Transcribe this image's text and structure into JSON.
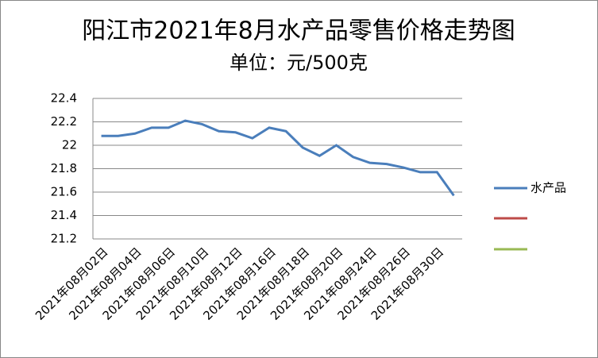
{
  "chart_data": {
    "type": "line",
    "title": "阳江市2021年8月水产品零售价格走势图",
    "subtitle": "单位：元/500克",
    "categories": [
      "2021年08月02日",
      null,
      "2021年08月04日",
      null,
      "2021年08月06日",
      null,
      "2021年08月10日",
      null,
      "2021年08月12日",
      null,
      "2021年08月16日",
      null,
      "2021年08月18日",
      null,
      "2021年08月20日",
      null,
      "2021年08月24日",
      null,
      "2021年08月26日",
      null,
      "2021年08月30日",
      null
    ],
    "series": [
      {
        "name": "水产品",
        "color": "#4a7ebb",
        "values": [
          22.08,
          22.08,
          22.1,
          22.15,
          22.15,
          22.21,
          22.18,
          22.12,
          22.11,
          22.06,
          22.15,
          22.12,
          21.98,
          21.91,
          22.0,
          21.9,
          21.85,
          21.84,
          21.81,
          21.77,
          21.77,
          21.57
        ]
      }
    ],
    "ylim": [
      21.2,
      22.4
    ],
    "yticks": [
      21.2,
      21.4,
      21.6,
      21.8,
      22,
      22.2,
      22.4
    ],
    "grid": true
  }
}
